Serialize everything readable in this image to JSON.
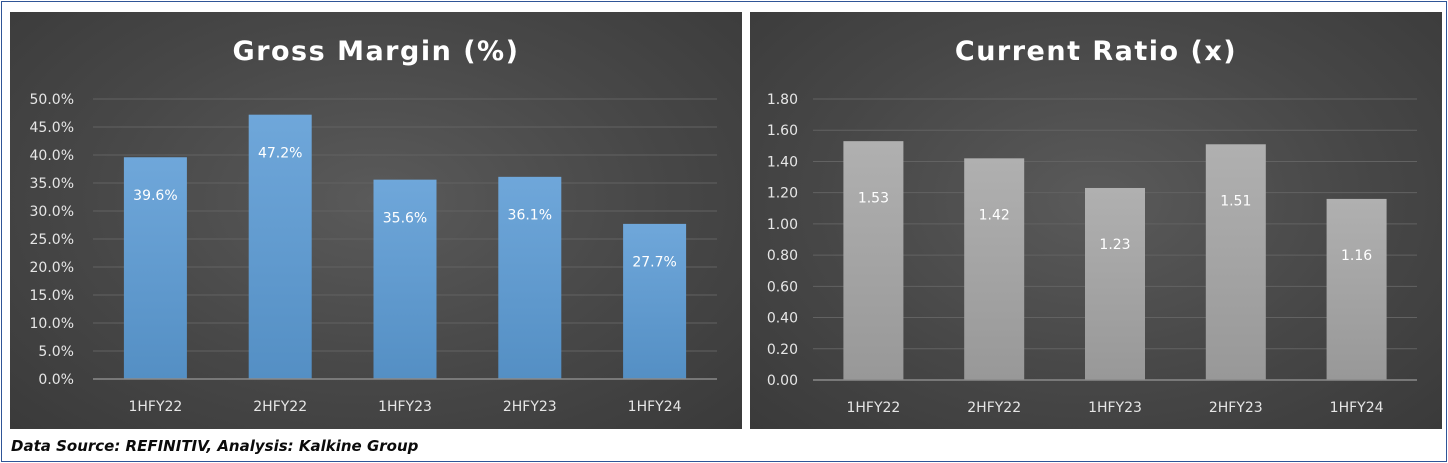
{
  "chart_data": [
    {
      "type": "bar",
      "title": "Gross Margin (%)",
      "categories": [
        "1HFY22",
        "2HFY22",
        "1HFY23",
        "2HFY23",
        "1HFY24"
      ],
      "values": [
        39.6,
        47.2,
        35.6,
        36.1,
        27.7
      ],
      "data_labels": [
        "39.6%",
        "47.2%",
        "35.6%",
        "36.1%",
        "27.7%"
      ],
      "ylim": [
        0,
        50
      ],
      "yticks": [
        0,
        5,
        10,
        15,
        20,
        25,
        30,
        35,
        40,
        45,
        50
      ],
      "ytick_labels": [
        "0.0%",
        "5.0%",
        "10.0%",
        "15.0%",
        "20.0%",
        "25.0%",
        "30.0%",
        "35.0%",
        "40.0%",
        "45.0%",
        "50.0%"
      ],
      "xlabel": "",
      "ylabel": "",
      "grid": true,
      "bar_color": "#5b9bd5"
    },
    {
      "type": "bar",
      "title": "Current Ratio (x)",
      "categories": [
        "1HFY22",
        "2HFY22",
        "1HFY23",
        "2HFY23",
        "1HFY24"
      ],
      "values": [
        1.53,
        1.42,
        1.23,
        1.51,
        1.16
      ],
      "data_labels": [
        "1.53",
        "1.42",
        "1.23",
        "1.51",
        "1.16"
      ],
      "ylim": [
        0,
        1.8
      ],
      "yticks": [
        0,
        0.2,
        0.4,
        0.6,
        0.8,
        1.0,
        1.2,
        1.4,
        1.6,
        1.8
      ],
      "ytick_labels": [
        "0.00",
        "0.20",
        "0.40",
        "0.60",
        "0.80",
        "1.00",
        "1.20",
        "1.40",
        "1.60",
        "1.80"
      ],
      "xlabel": "",
      "ylabel": "",
      "grid": true,
      "bar_color": "#a5a5a5"
    }
  ],
  "footer": {
    "source_text": "Data Source: REFINITIV, Analysis: Kalkine Group"
  }
}
